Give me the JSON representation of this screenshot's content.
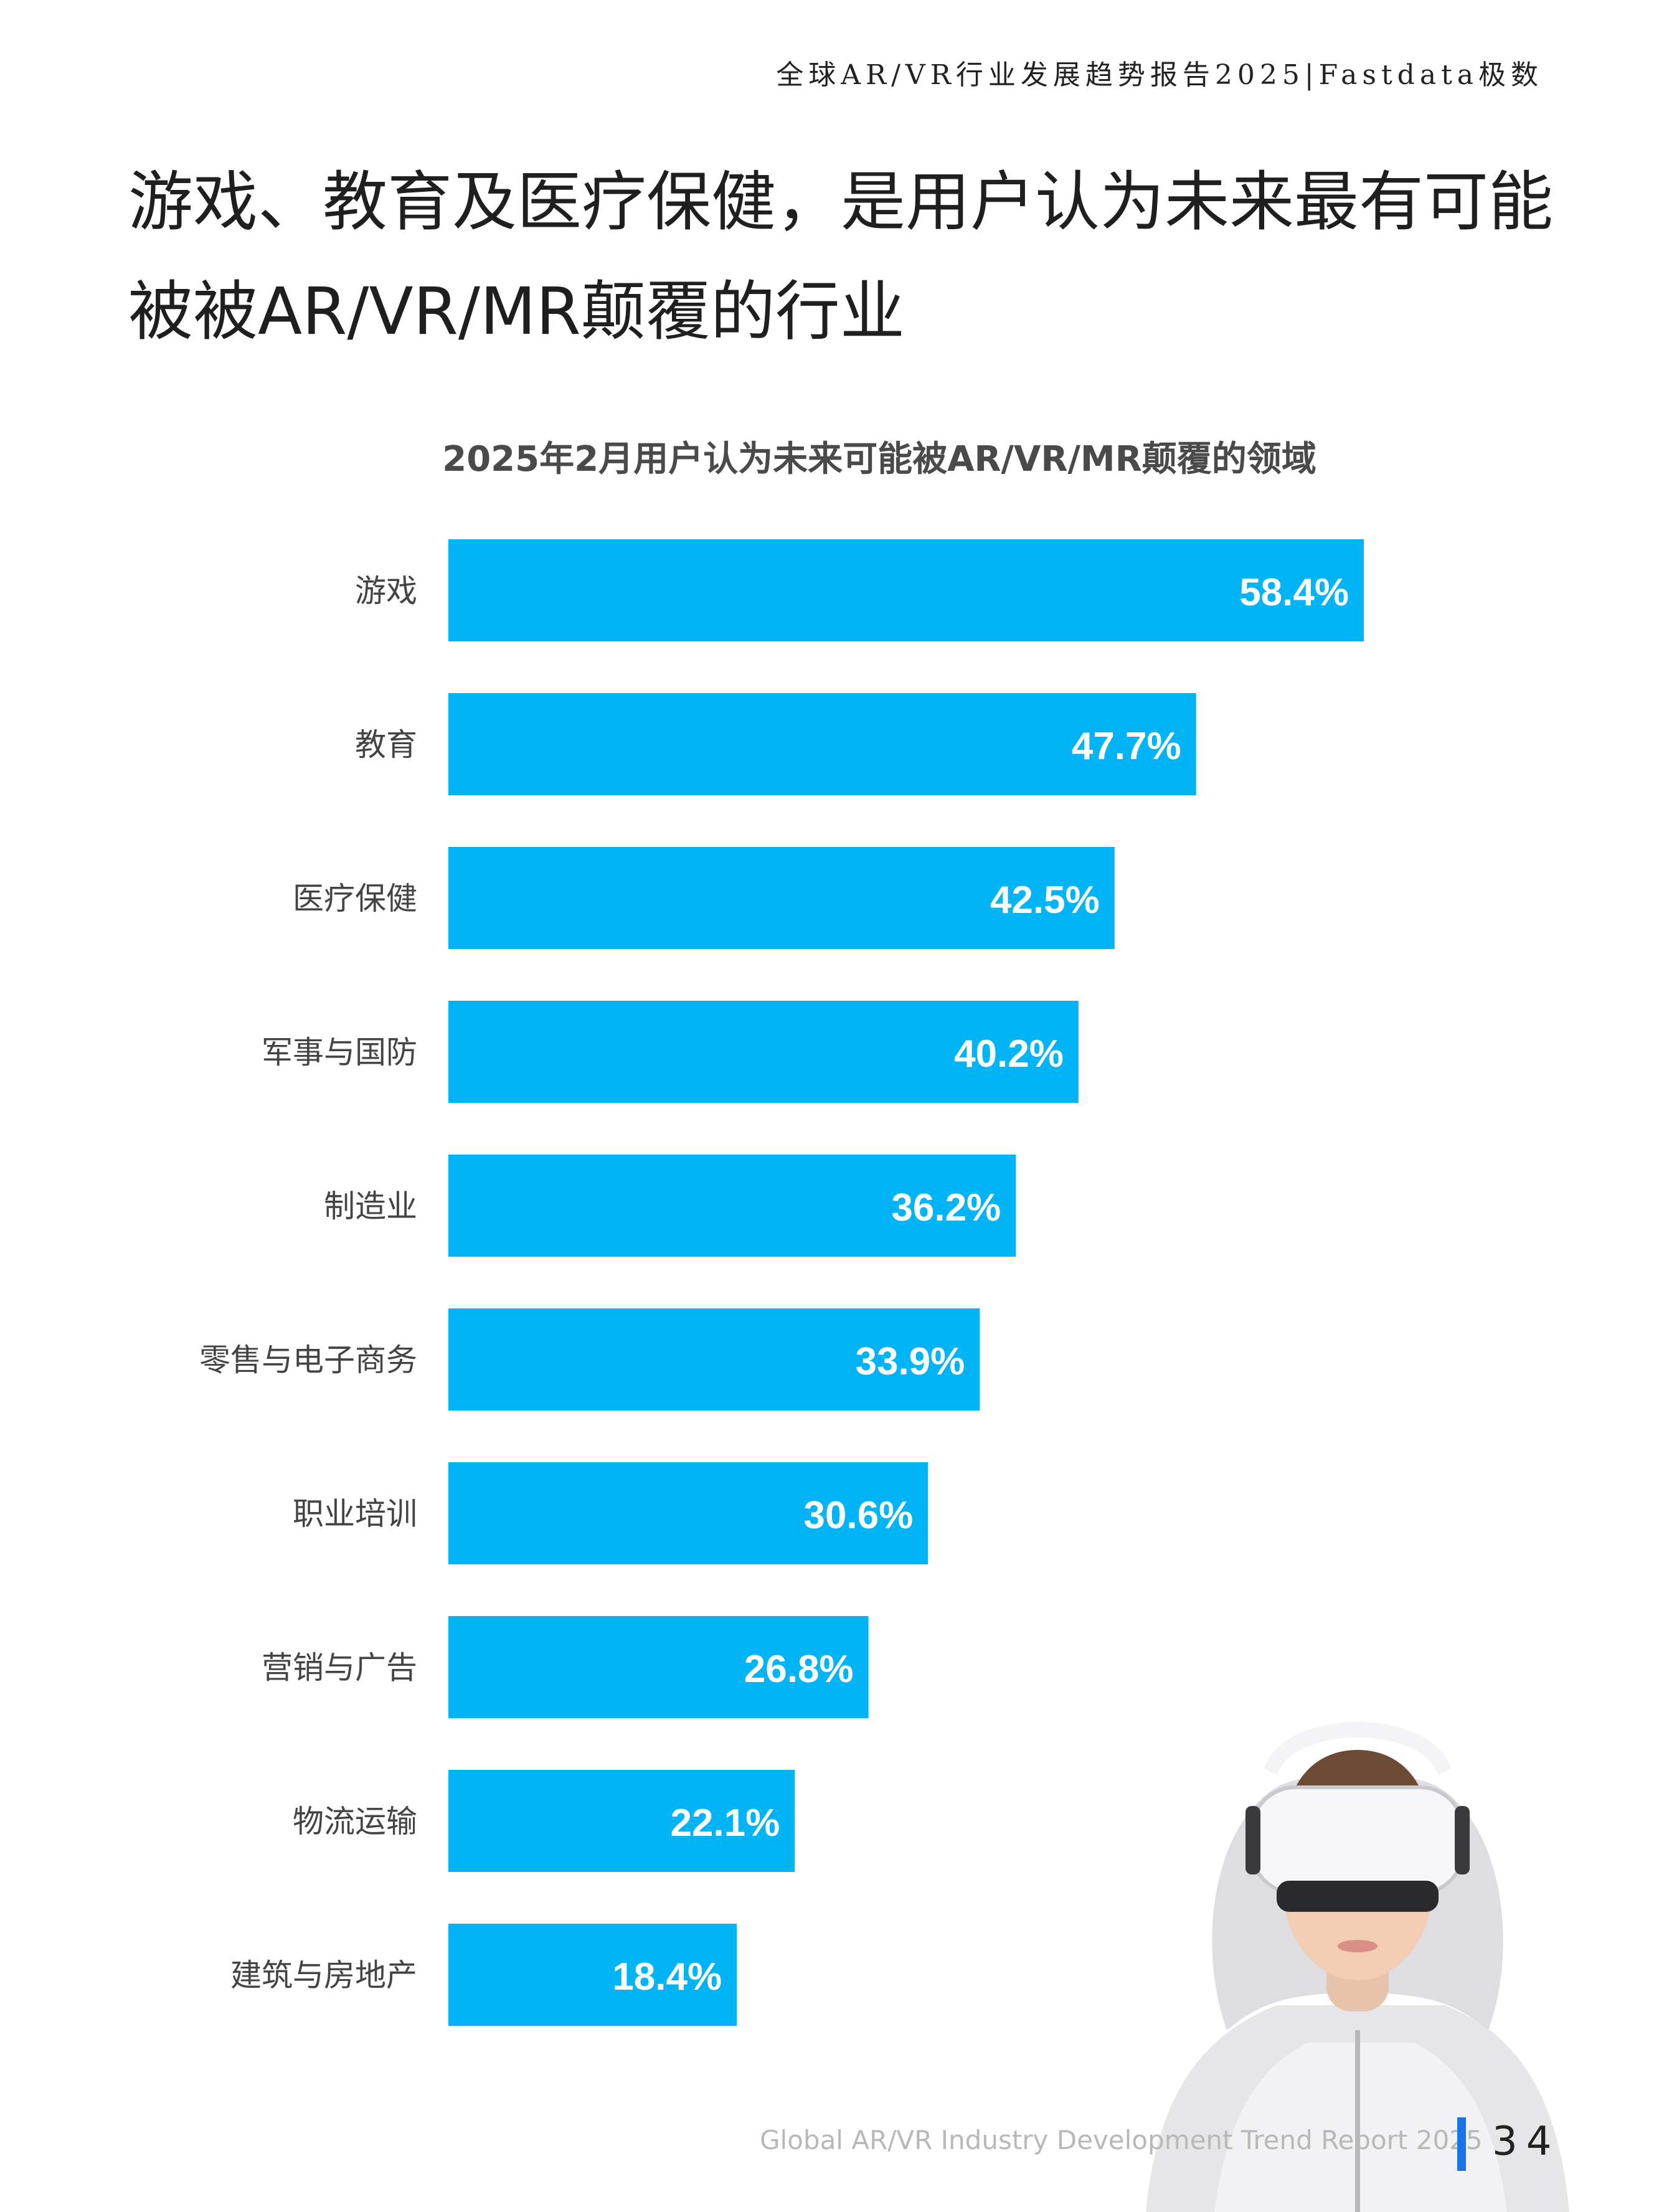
{
  "header": {
    "report_title": "全球AR/VR行业发展趋势报告2025|Fastdata极数"
  },
  "headline": {
    "line1": "游戏、教育及医疗保健，是用户认为未来最有可能",
    "line2": "被被AR/VR/MR颠覆的行业"
  },
  "colors": {
    "bar": "#00b4f5",
    "bar_label": "#ffffff",
    "category_label": "#444444",
    "footer_accent": "#1a73e8"
  },
  "chart_data": {
    "type": "bar",
    "orientation": "horizontal",
    "title": "2025年2月用户认为未来可能被AR/VR/MR颠覆的领域",
    "categories": [
      "游戏",
      "教育",
      "医疗保健",
      "军事与国防",
      "制造业",
      "零售与电子商务",
      "职业培训",
      "营销与广告",
      "物流运输",
      "建筑与房地产"
    ],
    "values": [
      58.4,
      47.7,
      42.5,
      40.2,
      36.2,
      33.9,
      30.6,
      26.8,
      22.1,
      18.4
    ],
    "data_labels": [
      "58.4%",
      "47.7%",
      "42.5%",
      "40.2%",
      "36.2%",
      "33.9%",
      "30.6%",
      "26.8%",
      "22.1%",
      "18.4%"
    ],
    "unit": "%",
    "xlim": [
      0,
      58.4
    ],
    "grid": false,
    "legend": "none"
  },
  "footer": {
    "report_name": "Global AR/VR Industry Development Trend Report 2025",
    "page_number": "34"
  }
}
